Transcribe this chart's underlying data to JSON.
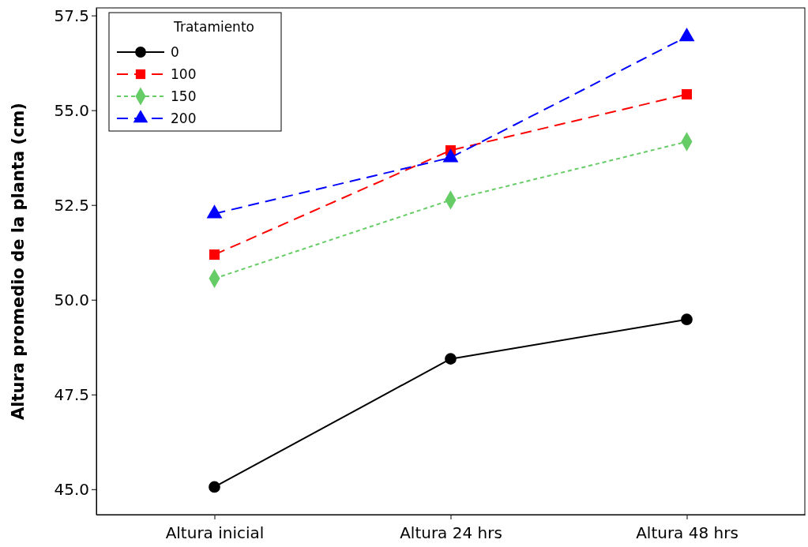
{
  "chart_data": {
    "type": "line",
    "ylabel": "Altura promedio de la planta (cm)",
    "legend_title": "Tratamiento",
    "categories": [
      "Altura inicial",
      "Altura 24 hrs",
      "Altura 48 hrs"
    ],
    "series": [
      {
        "name": "0",
        "color": "#000000",
        "marker": "circle",
        "line_style": "solid",
        "values": [
          45.06,
          48.44,
          49.48
        ]
      },
      {
        "name": "100",
        "color": "#ff0000",
        "marker": "square",
        "line_style": "dashed",
        "values": [
          51.19,
          53.94,
          55.42
        ]
      },
      {
        "name": "150",
        "color": "#66cc66",
        "marker": "diamond",
        "line_style": "dotted",
        "values": [
          50.56,
          52.63,
          54.17
        ]
      },
      {
        "name": "200",
        "color": "#0000ff",
        "marker": "triangle",
        "line_style": "dashed",
        "values": [
          52.27,
          53.75,
          56.94
        ]
      }
    ],
    "ylim": [
      44.33,
      57.7
    ],
    "yticks": [
      {
        "value": 45,
        "label": "45.0"
      },
      {
        "value": 47.5,
        "label": "47.5"
      },
      {
        "value": 50,
        "label": "50.0"
      },
      {
        "value": 52.5,
        "label": "52.5"
      },
      {
        "value": 55,
        "label": "55.0"
      },
      {
        "value": 57.5,
        "label": "57.5"
      }
    ],
    "grid": false,
    "legend": "top left"
  }
}
